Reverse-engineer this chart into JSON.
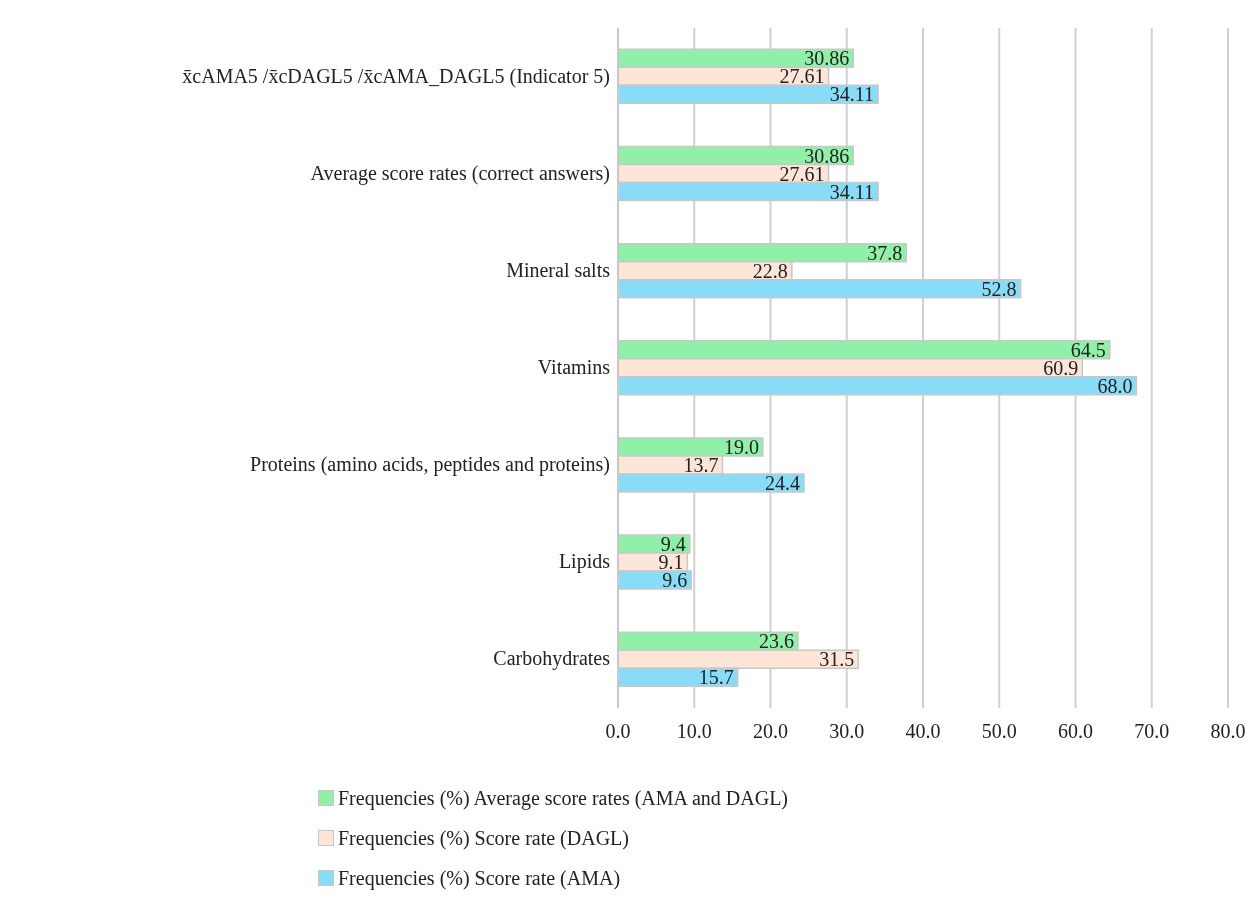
{
  "chart_data": {
    "type": "bar",
    "orientation": "horizontal",
    "categories": [
      "x̄cAMA5 /x̄cDAGL5 /x̄cAMA_DAGL5 (Indicator 5)",
      "Average score rates (correct answers)",
      "Mineral salts",
      "Vitamins",
      "Proteins (amino acids, peptides and proteins)",
      "Lipids",
      "Carbohydrates"
    ],
    "series": [
      {
        "name": "Frequencies (%) Average score rates (AMA and DAGL)",
        "color": "#90f0a8",
        "values": [
          30.86,
          30.86,
          37.8,
          64.5,
          19.0,
          9.4,
          23.6
        ],
        "value_labels": [
          "30.86",
          "30.86",
          "37.8",
          "64.5",
          "19.0",
          "9.4",
          "23.6"
        ]
      },
      {
        "name": "Frequencies (%) Score rate (DAGL)",
        "color": "#fde6d8",
        "values": [
          27.61,
          27.61,
          22.8,
          60.9,
          13.7,
          9.1,
          31.5
        ],
        "value_labels": [
          "27.61",
          "27.61",
          "22.8",
          "60.9",
          "13.7",
          "9.1",
          "31.5"
        ]
      },
      {
        "name": "Frequencies (%) Score rate (AMA)",
        "color": "#88dcf8",
        "values": [
          34.11,
          34.11,
          52.8,
          68.0,
          24.4,
          9.6,
          15.7
        ],
        "value_labels": [
          "34.11",
          "34.11",
          "52.8",
          "68.0",
          "24.4",
          "9.6",
          "15.7"
        ]
      }
    ],
    "xlim": [
      0,
      80
    ],
    "xticks": [
      {
        "value": 0,
        "label": "0.0"
      },
      {
        "value": 10,
        "label": "10.0"
      },
      {
        "value": 20,
        "label": "20.0"
      },
      {
        "value": 30,
        "label": "30.0"
      },
      {
        "value": 40,
        "label": "40.0"
      },
      {
        "value": 50,
        "label": "50.0"
      },
      {
        "value": 60,
        "label": "60.0"
      },
      {
        "value": 70,
        "label": "70.0"
      },
      {
        "value": 80,
        "label": "80.0"
      }
    ],
    "grid": "x",
    "legend": "bottom"
  }
}
